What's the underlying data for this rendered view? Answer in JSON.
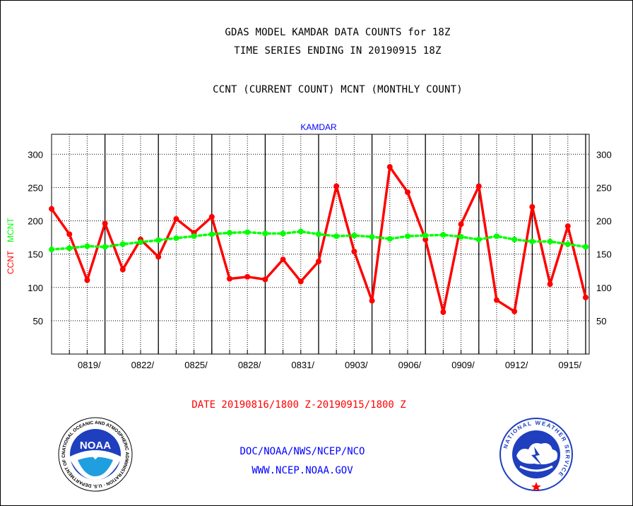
{
  "header": {
    "line1": "GDAS MODEL KAMDAR DATA COUNTS for 18Z",
    "line2": "TIME SERIES ENDING IN 20190915 18Z",
    "line3": "CCNT (CURRENT COUNT) MCNT (MONTHLY COUNT)"
  },
  "footer": {
    "date_range": "DATE 20190816/1800 Z-20190915/1800 Z",
    "org": "DOC/NOAA/NWS/NCEP/NCO",
    "url": "WWW.NCEP.NOAA.GOV"
  },
  "logos": {
    "noaa_text": "NOAA",
    "noaa_ring": "NATIONAL OCEANIC AND ATMOSPHERIC ADMINISTRATION · U.S. DEPARTMENT OF COMMERCE",
    "nws_ring": "NATIONAL WEATHER SERVICE"
  },
  "chart_data": {
    "type": "line",
    "title": "KAMDAR",
    "ylabel_ccnt": "CCNT",
    "ylabel_mcnt": "MCNT",
    "ylim": [
      0,
      330
    ],
    "yticks": [
      50,
      100,
      150,
      200,
      250,
      300
    ],
    "ytick_labels": [
      "50",
      "100",
      "150",
      "200",
      "250",
      "300"
    ],
    "xlim": [
      0,
      30.2
    ],
    "xticks": [
      3,
      6,
      9,
      12,
      15,
      18,
      21,
      24,
      27,
      30
    ],
    "xtick_labels": [
      "0819/",
      "0822/",
      "0825/",
      "0828/",
      "0831/",
      "0903/",
      "0906/",
      "0909/",
      "0912/",
      "0915/"
    ],
    "grid": true,
    "series": [
      {
        "name": "CCNT",
        "color": "#ff0000",
        "x": [
          0,
          1,
          2,
          3,
          4,
          5,
          6,
          7,
          8,
          9,
          10,
          11,
          12,
          13,
          14,
          15,
          16,
          17,
          18,
          19,
          20,
          21,
          22,
          23,
          24,
          25,
          26,
          27,
          28,
          29,
          30
        ],
        "values": [
          218,
          180,
          111,
          196,
          127,
          172,
          146,
          203,
          182,
          206,
          113,
          116,
          112,
          142,
          109,
          139,
          252,
          154,
          80,
          281,
          243,
          172,
          63,
          195,
          252,
          81,
          64,
          221,
          105,
          192,
          85
        ]
      },
      {
        "name": "MCNT",
        "color": "#00ff00",
        "x": [
          0,
          1,
          2,
          3,
          4,
          5,
          6,
          7,
          8,
          9,
          10,
          11,
          12,
          13,
          14,
          15,
          16,
          17,
          18,
          19,
          20,
          21,
          22,
          23,
          24,
          25,
          26,
          27,
          28,
          29,
          30
        ],
        "values": [
          157,
          159,
          162,
          161,
          165,
          168,
          171,
          174,
          177,
          180,
          182,
          183,
          181,
          181,
          184,
          180,
          177,
          178,
          176,
          173,
          177,
          178,
          179,
          176,
          172,
          177,
          172,
          169,
          169,
          165,
          161
        ]
      }
    ]
  }
}
